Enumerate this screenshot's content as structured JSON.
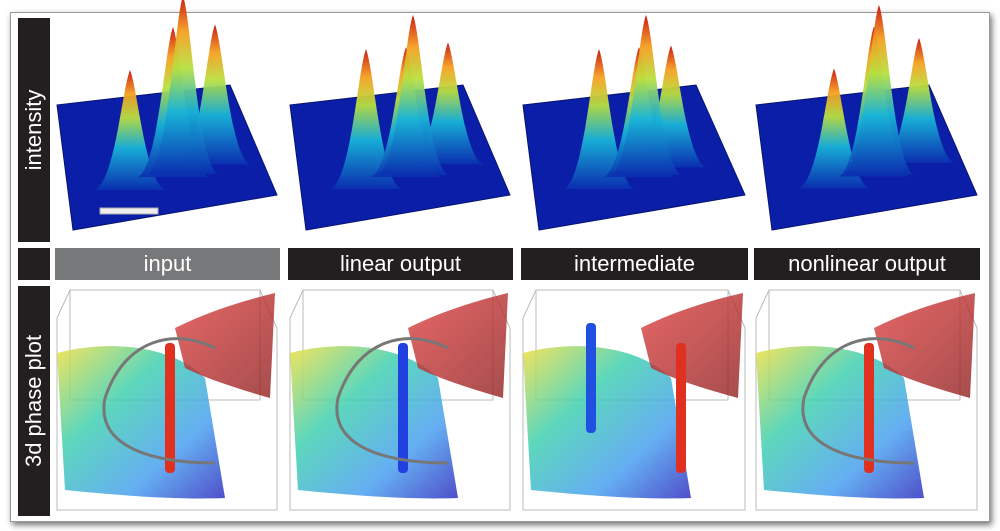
{
  "row_labels": [
    "intensity",
    "3d phase plot"
  ],
  "column_labels": [
    "input",
    "linear output",
    "intermediate",
    "nonlinear output"
  ]
}
